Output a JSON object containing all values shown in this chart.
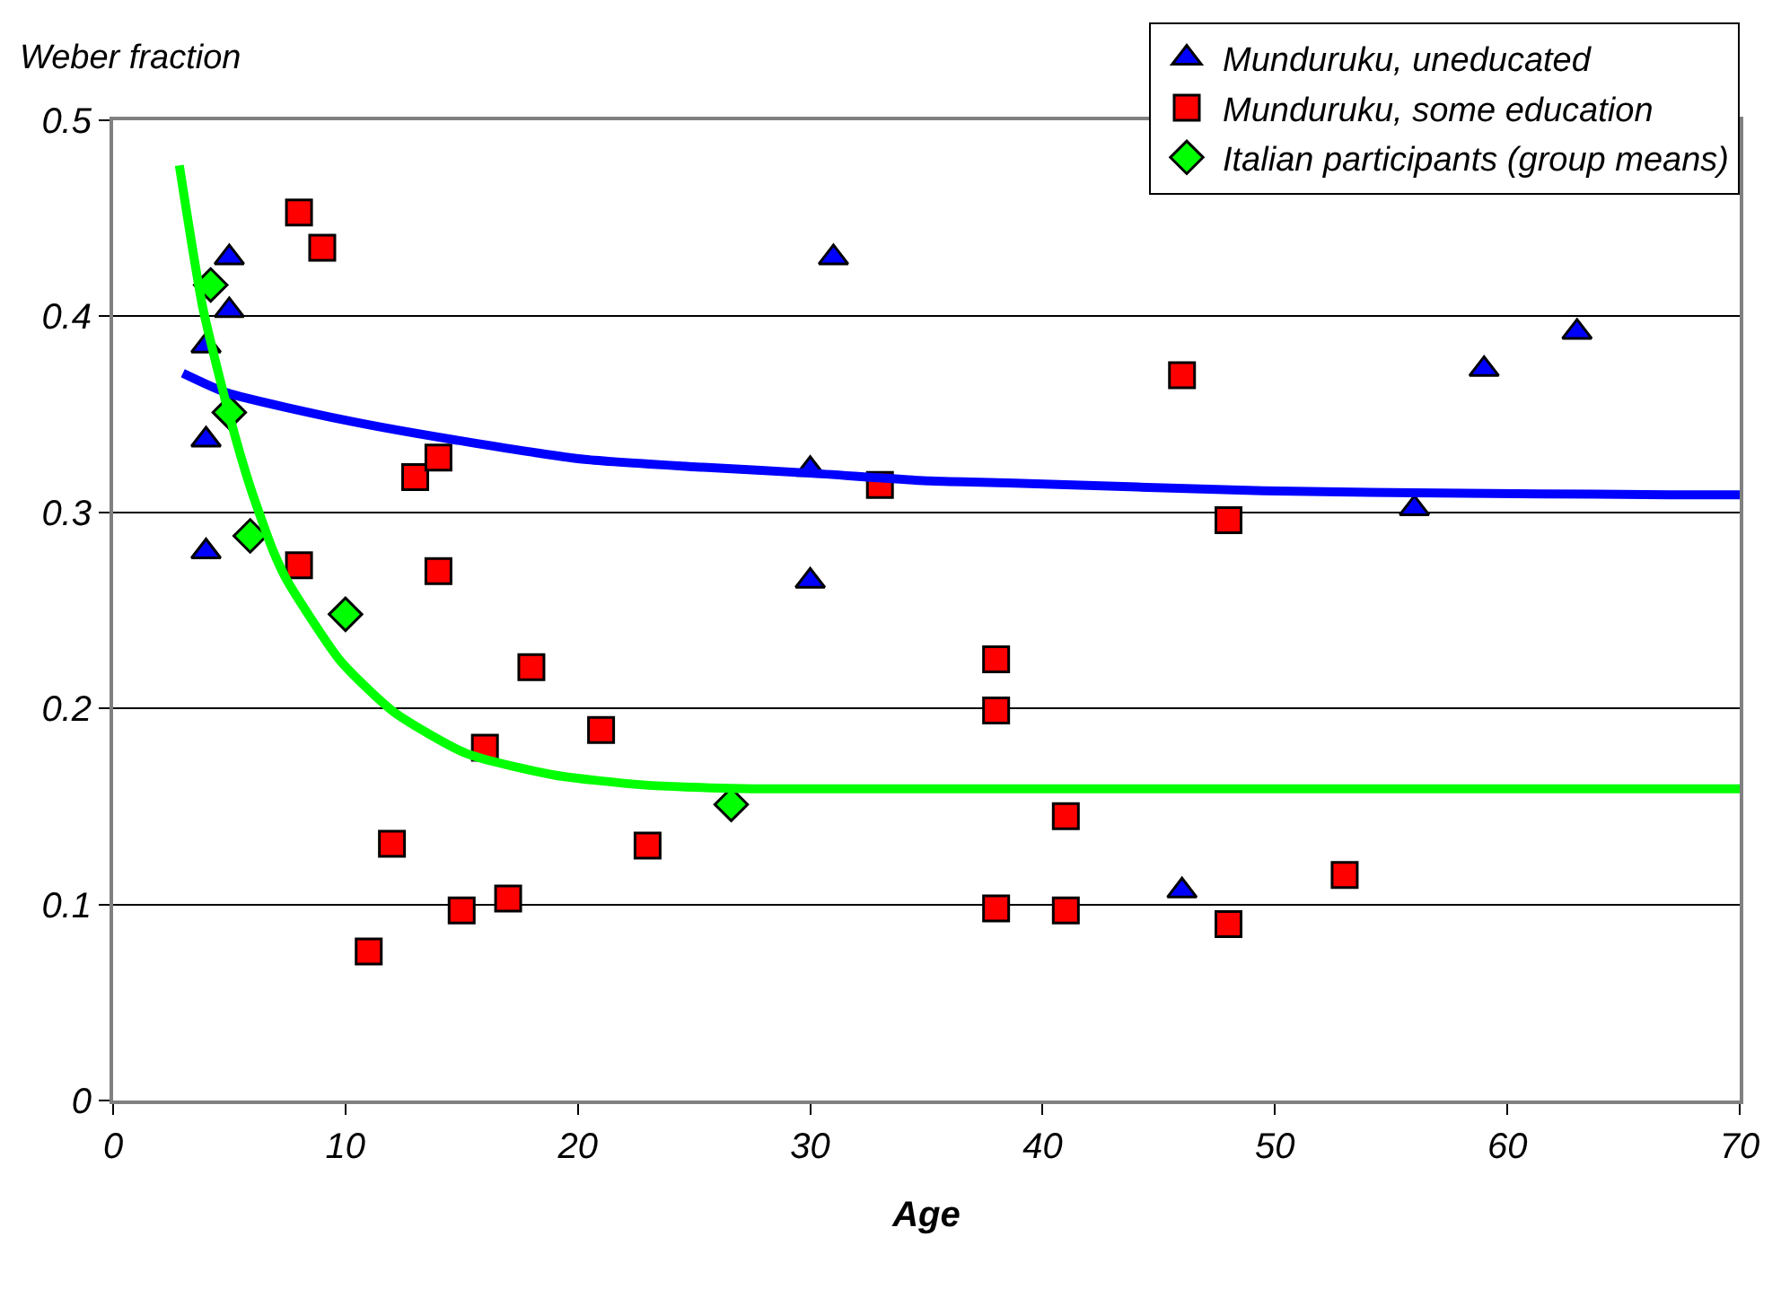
{
  "chart_data": {
    "type": "scatter",
    "xlabel": "Age",
    "ylabel": "Weber fraction",
    "xlim": [
      0,
      70
    ],
    "xticks": [
      0,
      10,
      20,
      30,
      40,
      50,
      60,
      70
    ],
    "ylim": [
      0,
      0.5
    ],
    "yticks": [
      0,
      0.1,
      0.2,
      0.3,
      0.4,
      0.5
    ],
    "grid": "y",
    "legend": "top right",
    "series": [
      {
        "name": "Munduruku, uneducated",
        "color": "#0000ff",
        "marker": "triangle",
        "x": [
          4,
          4,
          4,
          5,
          5,
          30,
          30,
          31,
          46,
          56,
          59,
          63
        ],
        "values": [
          0.385,
          0.337,
          0.28,
          0.43,
          0.403,
          0.322,
          0.265,
          0.43,
          0.107,
          0.302,
          0.373,
          0.392
        ]
      },
      {
        "name": "Munduruku, some education",
        "color": "#ff0000",
        "marker": "square",
        "x": [
          8,
          9,
          8,
          13,
          14,
          14,
          12,
          11,
          16,
          15,
          17,
          18,
          21,
          23,
          33,
          38,
          38,
          38,
          41,
          41,
          46,
          48,
          48,
          53
        ],
        "values": [
          0.453,
          0.435,
          0.273,
          0.318,
          0.328,
          0.27,
          0.131,
          0.076,
          0.18,
          0.097,
          0.103,
          0.221,
          0.189,
          0.13,
          0.314,
          0.225,
          0.199,
          0.098,
          0.145,
          0.097,
          0.37,
          0.296,
          0.09,
          0.115
        ]
      },
      {
        "name": "Italian participants (group means)",
        "color": "#00ff00",
        "marker": "diamond",
        "x": [
          4.2,
          5,
          5.9,
          10,
          26.6
        ],
        "values": [
          0.416,
          0.351,
          0.288,
          0.248,
          0.151
        ]
      },
      {
        "type": "line",
        "color": "#0000ff",
        "marker": "none",
        "x": [
          3,
          4.9,
          10,
          15.2,
          20.3,
          25.4,
          30,
          35.2,
          38.5,
          49.5,
          56,
          67,
          70
        ],
        "values": [
          0.371,
          0.361,
          0.347,
          0.336,
          0.327,
          0.323,
          0.32,
          0.316,
          0.315,
          0.311,
          0.31,
          0.309,
          0.309
        ]
      },
      {
        "type": "line",
        "color": "#00ff00",
        "marker": "none",
        "x": [
          2.85,
          3.85,
          4.9,
          5.9,
          6.9,
          7.5,
          9.8,
          12.1,
          15.2,
          19,
          22.8,
          28,
          70
        ],
        "values": [
          0.477,
          0.405,
          0.354,
          0.313,
          0.28,
          0.265,
          0.224,
          0.198,
          0.177,
          0.166,
          0.161,
          0.159,
          0.159
        ]
      }
    ]
  }
}
